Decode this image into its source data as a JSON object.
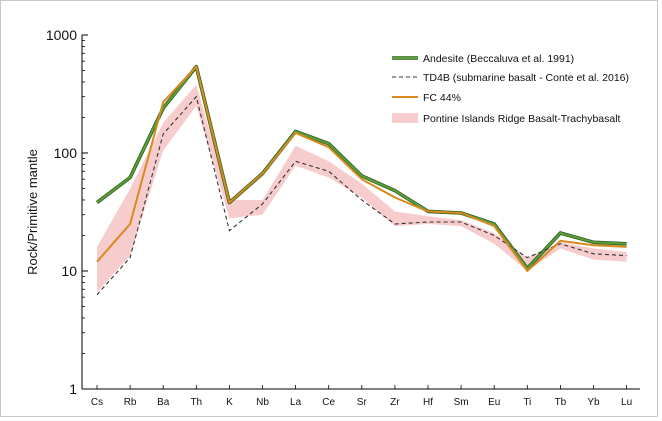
{
  "chart_data": {
    "type": "line",
    "ylabel": "Rock/Primitive mantle",
    "yscale": "log",
    "ylim": [
      1,
      1000
    ],
    "y_ticks": [
      "1",
      "10",
      "100",
      "1000"
    ],
    "categories": [
      "Cs",
      "Rb",
      "Ba",
      "Th",
      "K",
      "Nb",
      "La",
      "Ce",
      "Sr",
      "Zr",
      "Hf",
      "Sm",
      "Eu",
      "Ti",
      "Tb",
      "Yb",
      "Lu"
    ],
    "series": [
      {
        "name": "Andesite (Beccaluva et al. 1991)",
        "style": "double-line",
        "color": "#5a9e3a",
        "edge_color": "#2f5f1f",
        "values": [
          38,
          62,
          240,
          540,
          38,
          67,
          152,
          120,
          64,
          48,
          32,
          31,
          25,
          10.5,
          21,
          17.5,
          17
        ]
      },
      {
        "name": "TD4B (submarine basalt - Conte et al. 2016)",
        "style": "dashed",
        "color": "#333333",
        "values": [
          6.3,
          13,
          145,
          300,
          22,
          37,
          85,
          70,
          40,
          25,
          26,
          26,
          20,
          13,
          17,
          14,
          13.5
        ]
      },
      {
        "name": "FC  44%",
        "style": "solid",
        "color": "#d9891e",
        "values": [
          12,
          25,
          270,
          540,
          38,
          67,
          148,
          112,
          60,
          42,
          32,
          31,
          24,
          10,
          18,
          16.5,
          16
        ]
      }
    ],
    "band": {
      "name": "Pontine Islands Ridge Basalt-Trachybasalt",
      "color": "#f4b6b8",
      "opacity": 0.7,
      "upper": [
        16,
        50,
        180,
        380,
        40,
        40,
        115,
        85,
        55,
        32,
        29,
        27,
        21,
        13,
        17.5,
        15.5,
        14.5
      ],
      "lower": [
        6.6,
        13.5,
        105,
        250,
        28,
        30,
        78,
        62,
        42,
        24,
        25,
        24,
        17,
        10,
        15.5,
        12.5,
        12
      ]
    },
    "legend": "top-right",
    "grid": false
  }
}
